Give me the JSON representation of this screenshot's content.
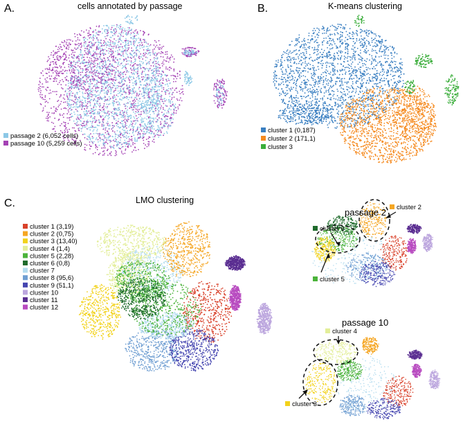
{
  "panels": {
    "A": {
      "letter": "A.",
      "title": "cells annotated by passage",
      "legend": [
        {
          "label": "passage 2 (6,052 cells)",
          "color": "#8cc8e6"
        },
        {
          "label": "passage 10 (5,259 cells)",
          "color": "#a442b4"
        }
      ]
    },
    "B": {
      "letter": "B.",
      "title": "K-means clustering",
      "legend": [
        {
          "label": "cluster 1 (0,187)",
          "color": "#3a7fc1"
        },
        {
          "label": "cluster 2 (171,1)",
          "color": "#f58a1f"
        },
        {
          "label": "cluster 3",
          "color": "#3aad3a"
        }
      ]
    },
    "C": {
      "letter": "C.",
      "title": "LMO clustering",
      "legend": [
        {
          "label": "cluster 1 (3,19)",
          "color": "#d9412a"
        },
        {
          "label": "cluster 2 (0,75)",
          "color": "#f5a623"
        },
        {
          "label": "cluster 3 (13,40)",
          "color": "#f2d21b"
        },
        {
          "label": "cluster 4 (1,4)",
          "color": "#e3ee9a"
        },
        {
          "label": "cluster 5 (2,28)",
          "color": "#4bb33a"
        },
        {
          "label": "cluster 6 (0,8)",
          "color": "#1f6b2c"
        },
        {
          "label": "cluster 7",
          "color": "#b4dcef"
        },
        {
          "label": "cluster 8 (95,6)",
          "color": "#6f9ed2"
        },
        {
          "label": "cluster 9 (51,1)",
          "color": "#4545b0"
        },
        {
          "label": "cluster 10",
          "color": "#bca6de"
        },
        {
          "label": "cluster 11",
          "color": "#5a2d91"
        },
        {
          "label": "cluster 12",
          "color": "#b84bc0"
        }
      ]
    },
    "passage2": {
      "title": "passage 2",
      "annotations": [
        {
          "label": "cluster 6",
          "color": "#1f6b2c"
        },
        {
          "label": "cluster 2",
          "color": "#f5a623"
        },
        {
          "label": "cluster 5",
          "color": "#4bb33a"
        }
      ]
    },
    "passage10": {
      "title": "passage 10",
      "annotations": [
        {
          "label": "cluster 4",
          "color": "#e3ee9a"
        },
        {
          "label": "cluster 3",
          "color": "#f2d21b"
        }
      ]
    }
  }
}
